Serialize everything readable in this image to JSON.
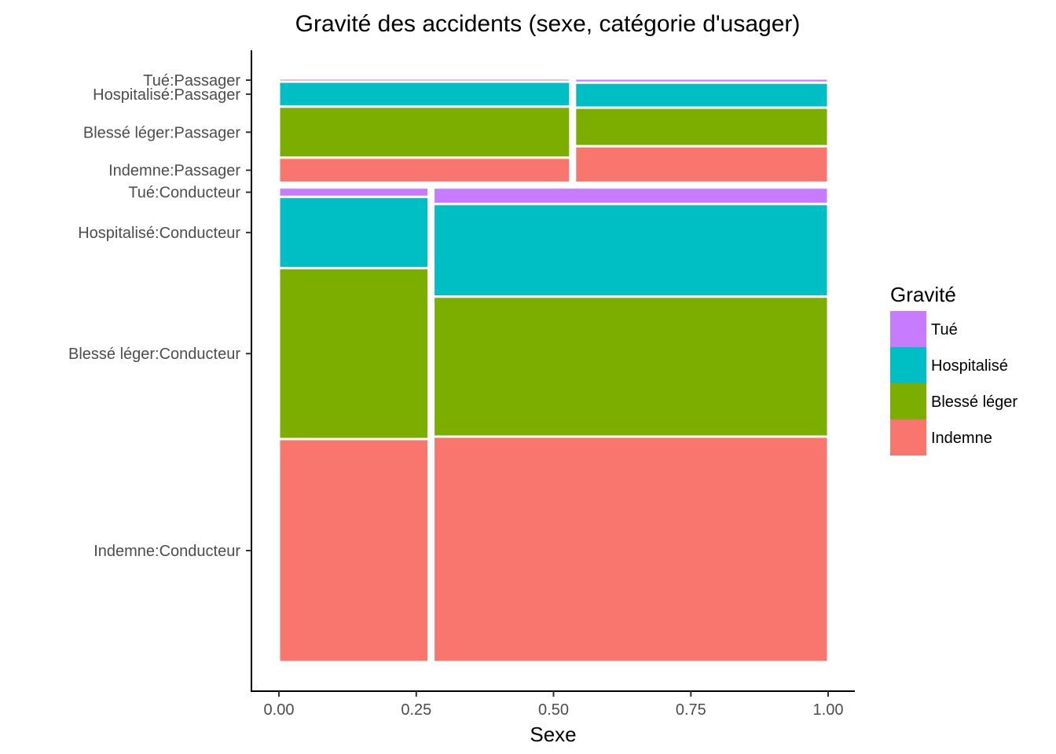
{
  "chart_data": {
    "type": "mosaic",
    "title": "Gravité des accidents (sexe, catégorie d'usager)",
    "xlabel": "Sexe",
    "ylabel": "",
    "xlim": [
      0,
      1
    ],
    "x_ticks": [
      "0.00",
      "0.25",
      "0.50",
      "0.75",
      "1.00"
    ],
    "y_tick_labels": [
      "Tué:Passager",
      "Hospitalisé:Passager",
      "Blessé léger:Passager",
      "Indemne:Passager",
      "Tué:Conducteur",
      "Hospitalisé:Conducteur",
      "Blessé léger:Conducteur",
      "Indemne:Conducteur"
    ],
    "legend": {
      "title": "Gravité",
      "placement": "right",
      "entries": [
        {
          "label": "Tué",
          "color": "#C77CFF"
        },
        {
          "label": "Hospitalisé",
          "color": "#00BFC4"
        },
        {
          "label": "Blessé léger",
          "color": "#7CAE00"
        },
        {
          "label": "Indemne",
          "color": "#F8766D"
        }
      ]
    },
    "panels": [
      {
        "category": "Passager",
        "share": 0.18,
        "columns": [
          {
            "share": 0.535,
            "fractions": {
              "Tué": 0.03,
              "Hospitalisé": 0.24,
              "Blessé léger": 0.49,
              "Indemne": 0.24
            }
          },
          {
            "share": 0.465,
            "fractions": {
              "Tué": 0.04,
              "Hospitalisé": 0.24,
              "Blessé léger": 0.37,
              "Indemne": 0.35
            }
          }
        ]
      },
      {
        "category": "Conducteur",
        "share": 0.82,
        "columns": [
          {
            "share": 0.275,
            "fractions": {
              "Tué": 0.02,
              "Hospitalisé": 0.15,
              "Blessé léger": 0.36,
              "Indemne": 0.47
            }
          },
          {
            "share": 0.725,
            "fractions": {
              "Tué": 0.035,
              "Hospitalisé": 0.195,
              "Blessé léger": 0.295,
              "Indemne": 0.475
            }
          }
        ]
      }
    ],
    "grid": false
  }
}
